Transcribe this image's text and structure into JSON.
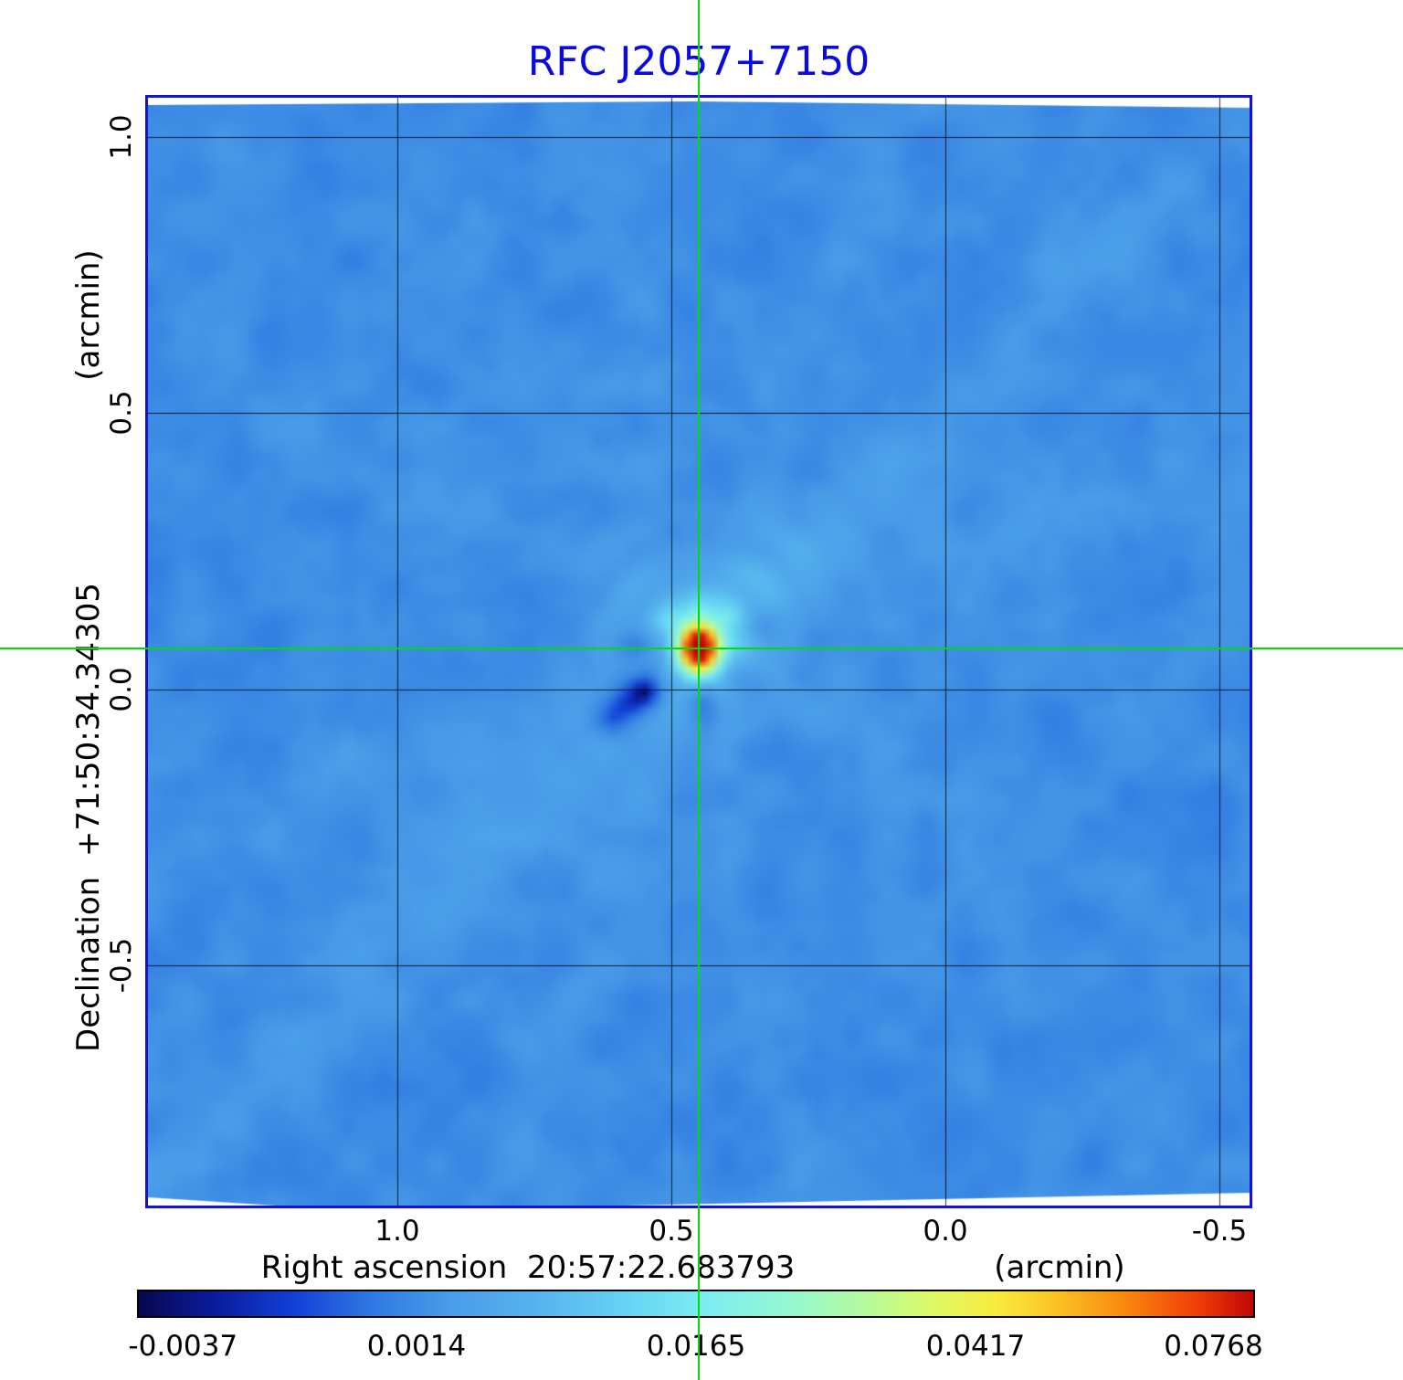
{
  "title": "RFC J2057+7150",
  "title_color": "#0a0ade",
  "frame_color": "#1414cc",
  "grid_color": "rgba(0,0,0,0.8)",
  "chart_data": {
    "type": "heatmap",
    "title": "RFC J2057+7150",
    "xlabel": "Right ascension  20:57:22.683793",
    "xunit": "(arcmin)",
    "ylabel": "Declination  +71:50:34.34305",
    "yunit": "(arcmin)",
    "x_range": [
      1.455,
      -0.555
    ],
    "y_range": [
      -0.935,
      1.071
    ],
    "x_ticks": [
      {
        "value": 1.0,
        "label": "1.0"
      },
      {
        "value": 0.5,
        "label": "0.5"
      },
      {
        "value": 0.0,
        "label": "0.0"
      },
      {
        "value": -0.5,
        "label": "-0.5"
      }
    ],
    "y_ticks": [
      {
        "value": 1.0,
        "label": "1.0"
      },
      {
        "value": 0.5,
        "label": "0.5"
      },
      {
        "value": 0.0,
        "label": "0.0"
      },
      {
        "value": -0.5,
        "label": "-0.5"
      }
    ],
    "grid": true,
    "crosshair": {
      "x": 0.45,
      "y": 0.074,
      "color": "#00dd00"
    },
    "source": {
      "name": "RFC J2057+7150",
      "x": 0.45,
      "y": 0.074,
      "peak": 0.0768
    },
    "noise_level": 0.0014,
    "scale": {
      "min": -0.0037,
      "max": 0.0768,
      "stretch": "sqrt"
    },
    "colorbar_ticks": [
      {
        "t": 0.0,
        "label": "-0.0037"
      },
      {
        "t": 0.25,
        "label": "0.0014"
      },
      {
        "t": 0.5,
        "label": "0.0165"
      },
      {
        "t": 0.75,
        "label": "0.0417"
      },
      {
        "t": 1.0,
        "label": "0.0768"
      }
    ],
    "colormap": [
      [
        0.0,
        "#07074f"
      ],
      [
        0.07,
        "#0b1d9e"
      ],
      [
        0.14,
        "#1240d8"
      ],
      [
        0.21,
        "#2f7ae2"
      ],
      [
        0.28,
        "#4a9ce8"
      ],
      [
        0.36,
        "#57b4ee"
      ],
      [
        0.44,
        "#66d4f4"
      ],
      [
        0.51,
        "#7dedf0"
      ],
      [
        0.58,
        "#93f7d3"
      ],
      [
        0.65,
        "#b4fa9f"
      ],
      [
        0.71,
        "#dcf968"
      ],
      [
        0.77,
        "#f9ea3e"
      ],
      [
        0.83,
        "#fbbd20"
      ],
      [
        0.89,
        "#f9820e"
      ],
      [
        0.95,
        "#ef3e07"
      ],
      [
        1.0,
        "#c00606"
      ]
    ],
    "psf": {
      "core": {
        "amp": 0.085,
        "sx": 1.5,
        "sy": 1.85
      },
      "halo": {
        "amp": 0.011,
        "s": 3.6
      },
      "spikes": [
        {
          "angle": -135,
          "amp": 0.0115,
          "width": 16,
          "decay": 6.5
        },
        {
          "angle": -90,
          "amp": 0.0095,
          "width": 12,
          "decay": 5.0
        },
        {
          "angle": -48,
          "amp": 0.0115,
          "width": 14,
          "decay": 8.0
        },
        {
          "angle": -10,
          "amp": 0.005,
          "width": 11,
          "decay": 7.0
        },
        {
          "angle": 140,
          "amp": 0.006,
          "width": 11,
          "decay": 9.0
        },
        {
          "angle": 178,
          "amp": 0.004,
          "width": 10,
          "decay": 6.0
        },
        {
          "angle": 62,
          "amp": 0.0035,
          "width": 10,
          "decay": 6.0
        }
      ],
      "negatives": [
        {
          "x": -5.0,
          "y": 4.0,
          "amp": -0.0075,
          "sx": 4.2,
          "sy": 1.8,
          "rot": -38
        },
        {
          "x": 0.5,
          "y": 5.0,
          "amp": -0.007,
          "sx": 1.6,
          "sy": 2.8,
          "rot": 0
        },
        {
          "x": -5.5,
          "y": -0.5,
          "amp": -0.0055,
          "sx": 2.8,
          "sy": 1.3,
          "rot": 0
        },
        {
          "x": 4.5,
          "y": 3.2,
          "amp": -0.0045,
          "sx": 2.2,
          "sy": 1.5,
          "rot": 25
        },
        {
          "x": 7.0,
          "y": -2.5,
          "amp": -0.003,
          "sx": 2.2,
          "sy": 1.4,
          "rot": -20
        },
        {
          "x": -9.5,
          "y": 7.5,
          "amp": -0.0045,
          "sx": 3.2,
          "sy": 1.7,
          "rot": -38
        }
      ],
      "streaks": [
        {
          "angle": -44,
          "amp": 0.0022,
          "width": 4.0
        },
        {
          "angle": -70,
          "amp": 0.0012,
          "width": 2.5
        },
        {
          "angle": -20,
          "amp": 0.0013,
          "width": 5.0
        },
        {
          "angle": 30,
          "amp": 0.001,
          "width": 3.0
        },
        {
          "angle": 80,
          "amp": 0.0008,
          "width": 2.5
        }
      ],
      "noise": {
        "base": 0.0013,
        "amp1": 0.0009,
        "cell1": 5.0,
        "amp2": 0.0004,
        "cell2": 2.2,
        "seed": 77
      }
    }
  }
}
